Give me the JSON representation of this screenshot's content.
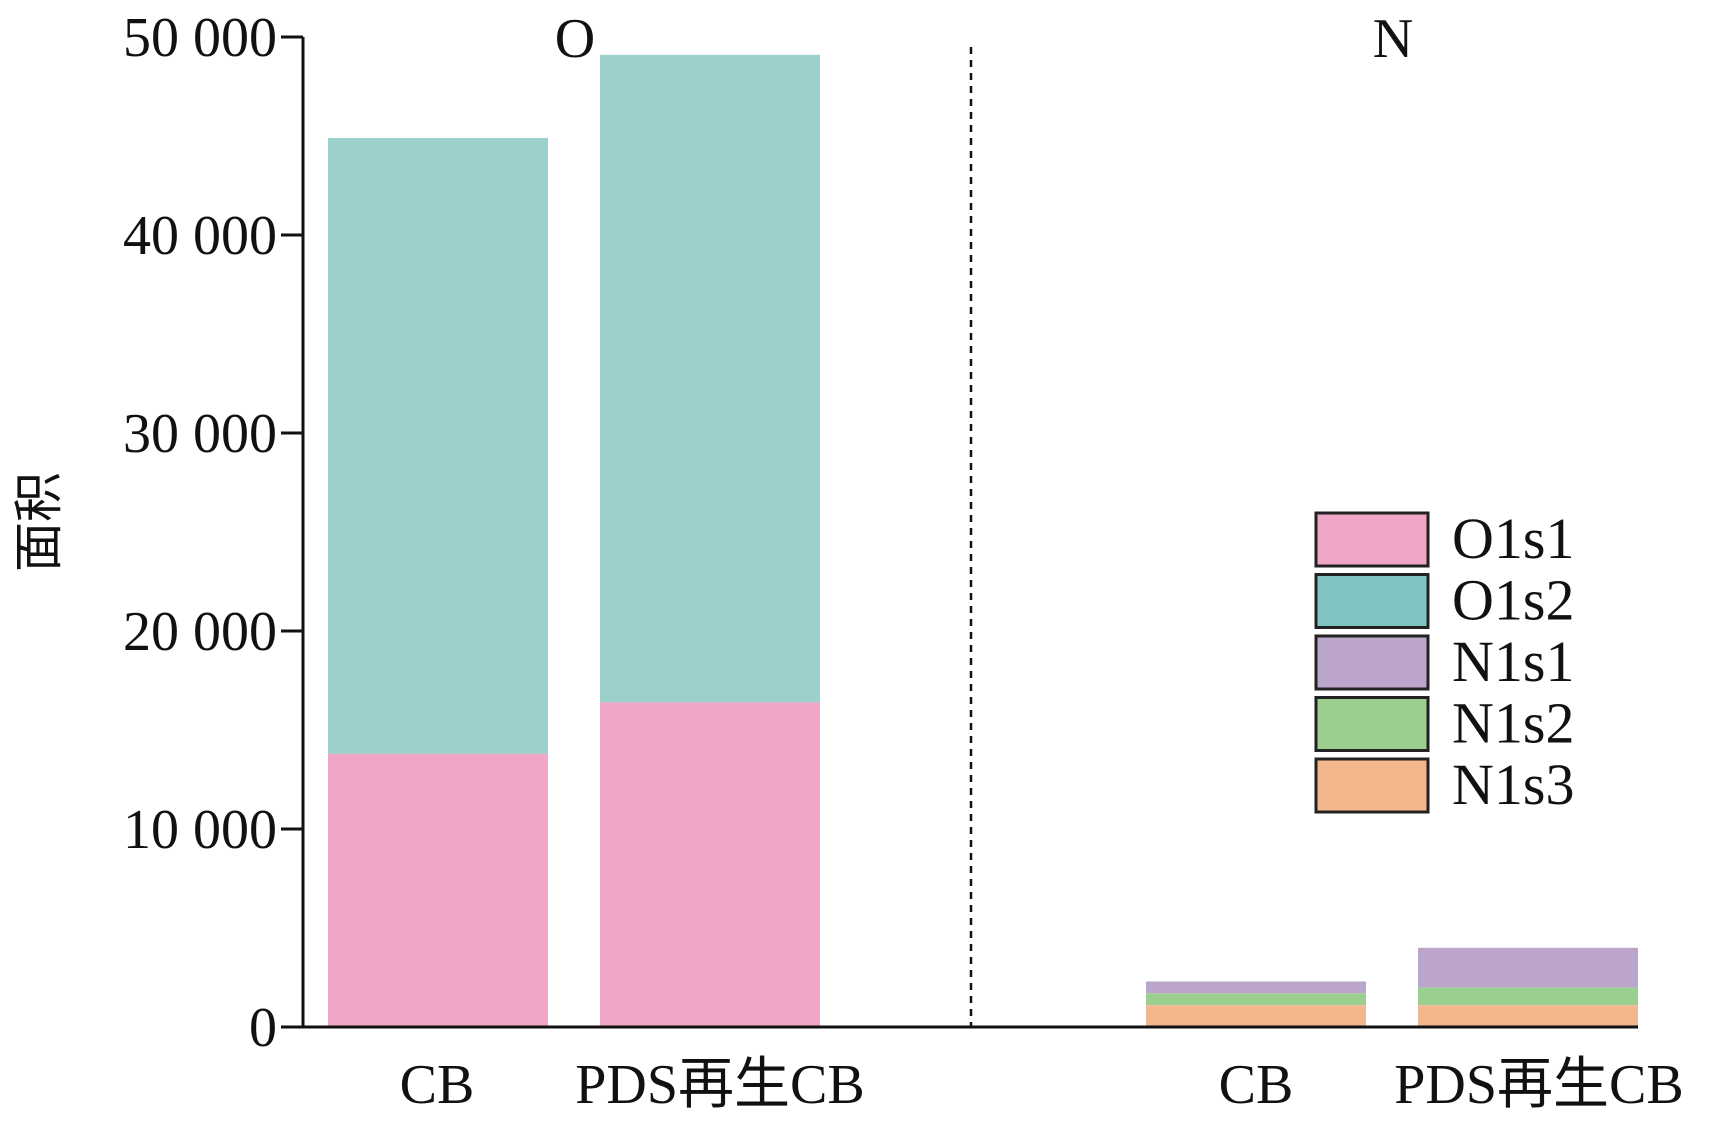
{
  "chart_data": {
    "type": "bar",
    "stacked": true,
    "title": "",
    "xlabel": "",
    "ylabel": "面积",
    "ylim": [
      0,
      50000
    ],
    "yticks": [
      0,
      10000,
      20000,
      30000,
      40000,
      50000
    ],
    "ytick_labels": [
      "0",
      "10 000",
      "20 000",
      "30 000",
      "40 000",
      "50 000"
    ],
    "grid": false,
    "legend_position": "right",
    "colors": {
      "O1s1": "#f0a6c6",
      "O1s2": "#9bd0cc",
      "N1s1": "#bca5cb",
      "N1s2": "#9bcf90",
      "N1s3": "#f4b68c"
    },
    "legend": [
      {
        "name": "O1s1",
        "color": "#f0a6c6"
      },
      {
        "name": "O1s2",
        "color": "#7fc4c0"
      },
      {
        "name": "N1s1",
        "color": "#bca5cb"
      },
      {
        "name": "N1s2",
        "color": "#9bcf90"
      },
      {
        "name": "N1s3",
        "color": "#f4b68c"
      }
    ],
    "panels": [
      {
        "label": "O",
        "categories": [
          "CB",
          "PDS再生CB"
        ],
        "series": [
          {
            "name": "O1s1",
            "values": [
              13800,
              16400
            ]
          },
          {
            "name": "O1s2",
            "values": [
              31100,
              32700
            ]
          }
        ]
      },
      {
        "label": "N",
        "categories": [
          "CB",
          "PDS再生CB"
        ],
        "series": [
          {
            "name": "N1s3",
            "values": [
              1100,
              1100
            ]
          },
          {
            "name": "N1s2",
            "values": [
              600,
              900
            ]
          },
          {
            "name": "N1s1",
            "values": [
              600,
              2000
            ]
          }
        ]
      }
    ]
  }
}
